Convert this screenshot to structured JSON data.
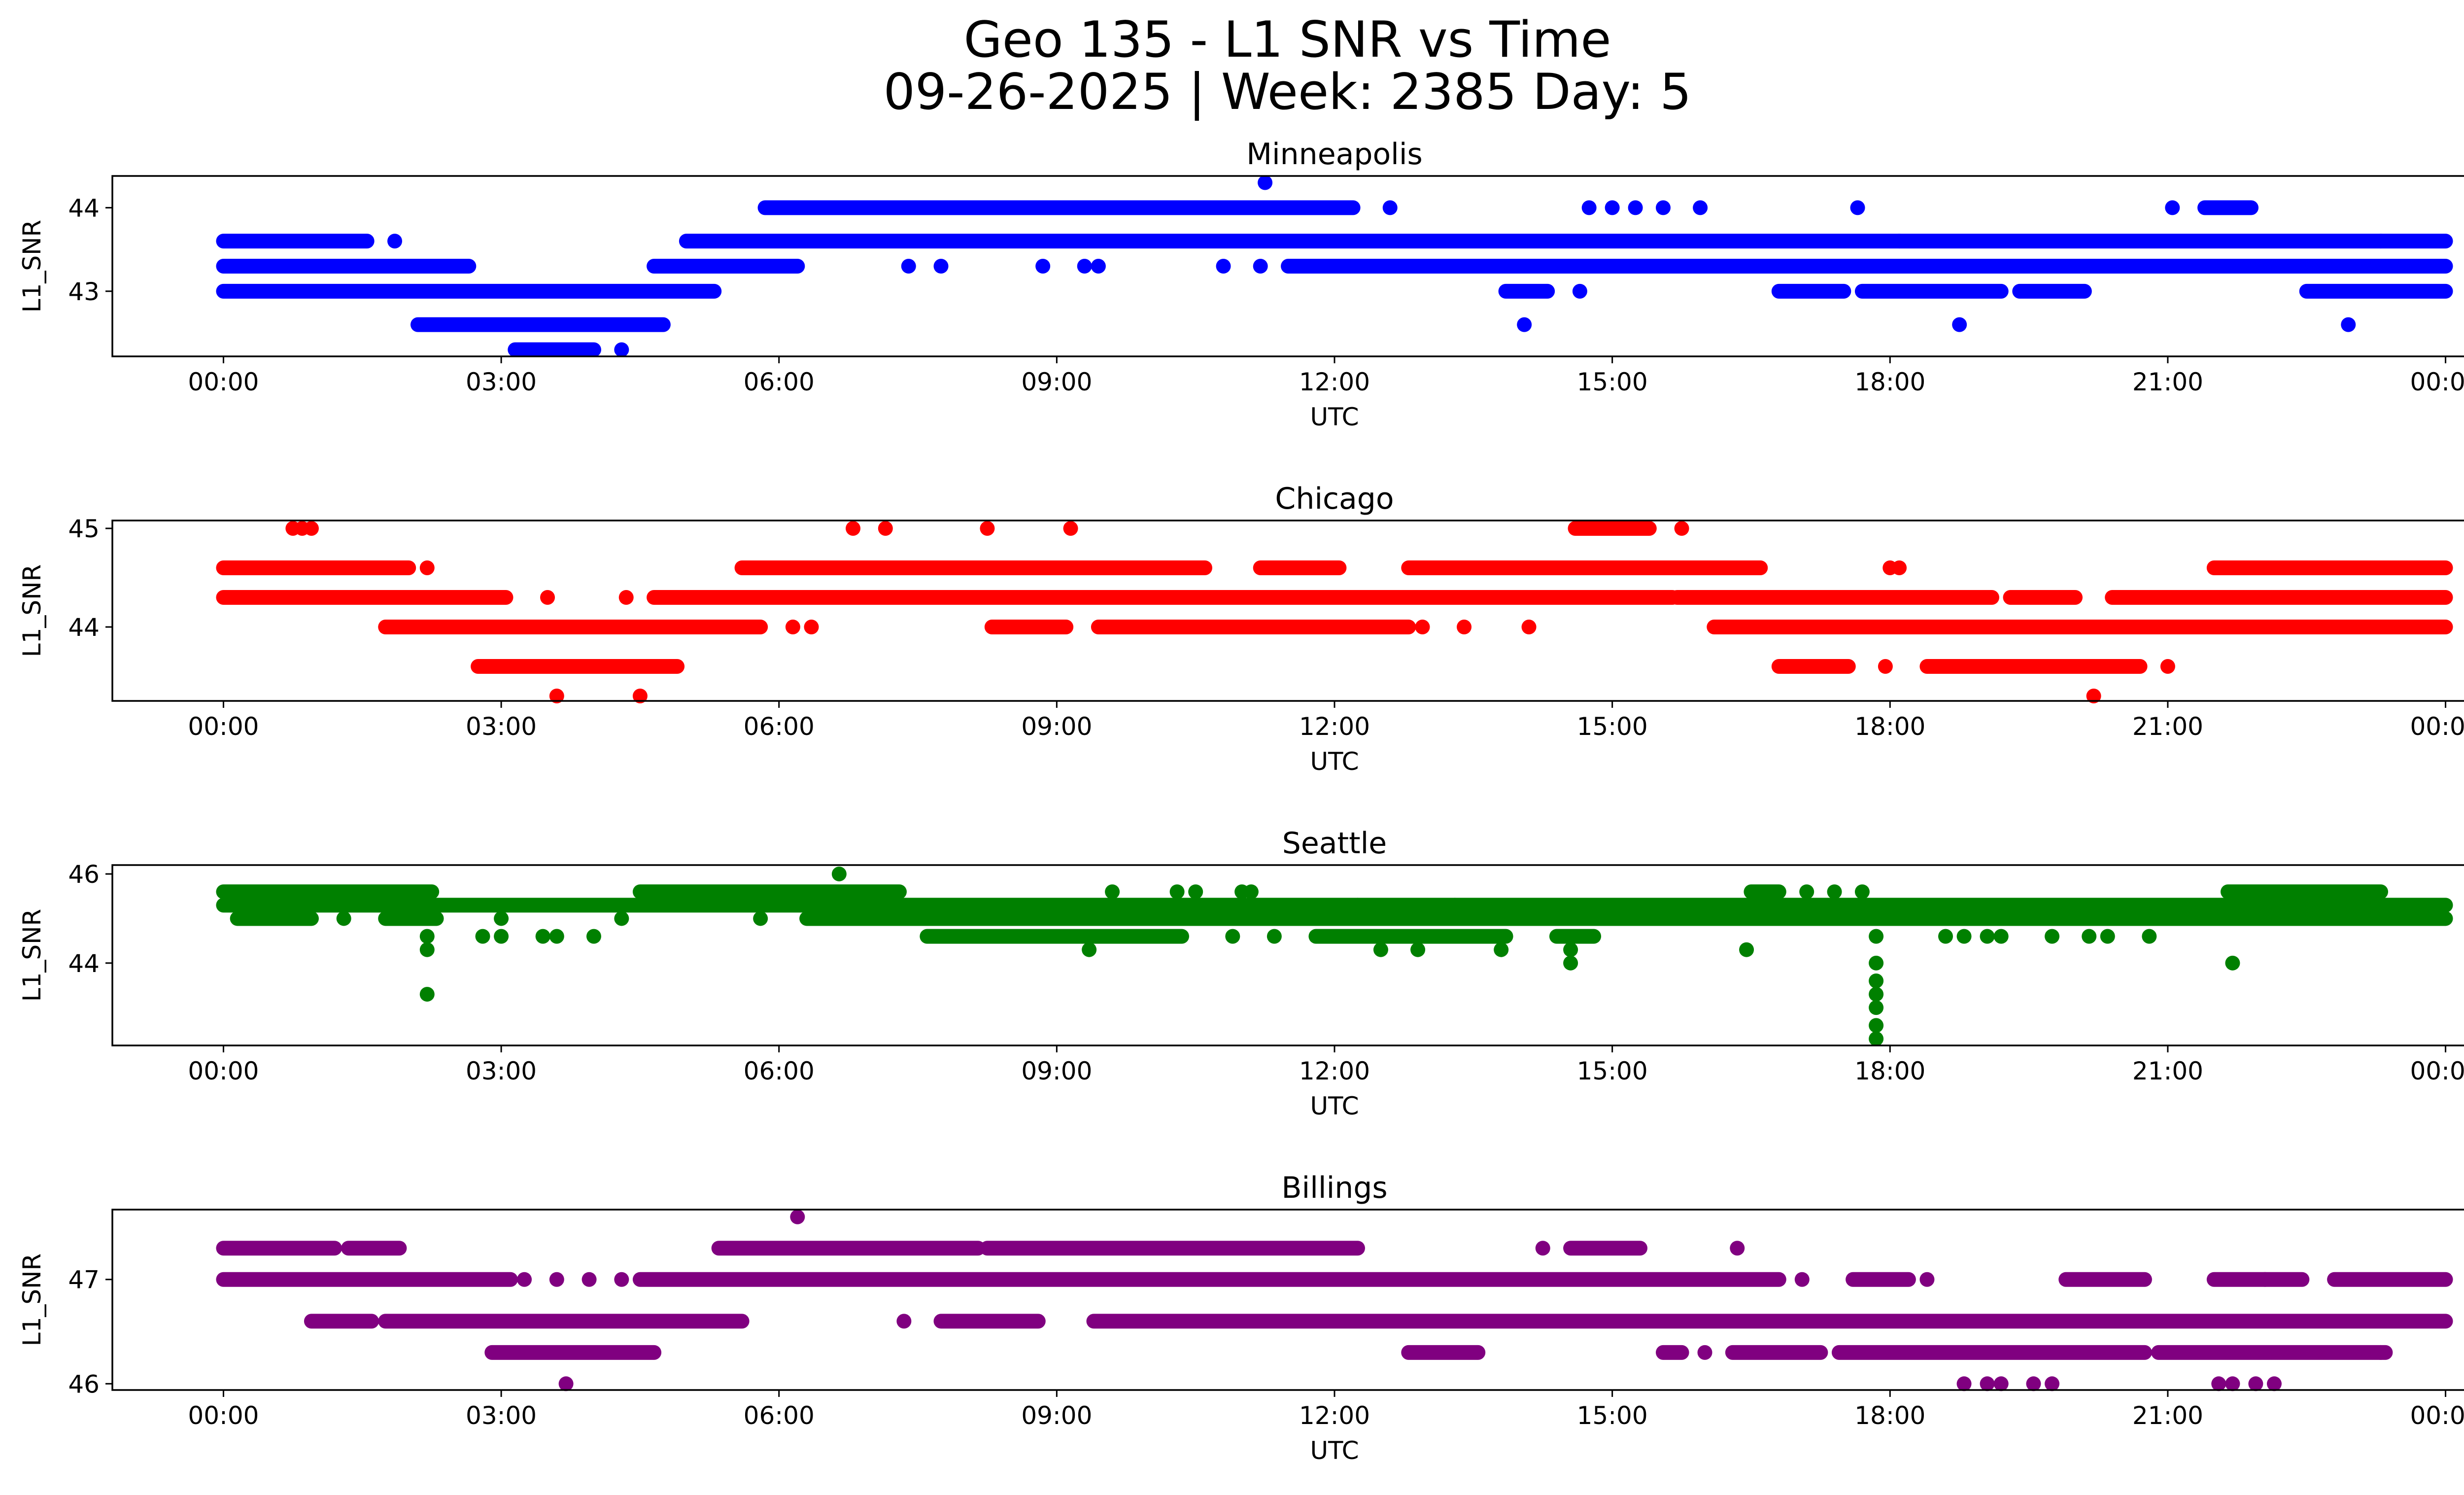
{
  "figure": {
    "title_line1": "Geo 135 - L1 SNR vs Time",
    "title_line2": "09-26-2025 | Week: 2385 Day: 5"
  },
  "chart_data": [
    {
      "type": "scatter",
      "title": "Minneapolis",
      "xlabel": "UTC",
      "ylabel": "L1_SNR",
      "color": "#0000ff",
      "xlim": [
        -1.2,
        25.2
      ],
      "ylim": [
        42.22,
        44.38
      ],
      "yticks": [
        43,
        44
      ],
      "xticks": [
        "00:00",
        "03:00",
        "06:00",
        "09:00",
        "12:00",
        "15:00",
        "18:00",
        "21:00",
        "00:00"
      ],
      "runs": [
        {
          "y": 43.0,
          "start": 0.0,
          "end": 5.3
        },
        {
          "y": 43.3,
          "start": 0.0,
          "end": 2.65
        },
        {
          "y": 43.6,
          "start": 0.0,
          "end": 1.55
        },
        {
          "y": 42.6,
          "start": 2.1,
          "end": 4.75
        },
        {
          "y": 42.3,
          "start": 3.15,
          "end": 4.0
        },
        {
          "y": 43.3,
          "start": 4.65,
          "end": 6.2
        },
        {
          "y": 43.6,
          "start": 5.0,
          "end": 24.0
        },
        {
          "y": 44.0,
          "start": 5.85,
          "end": 12.2
        },
        {
          "y": 43.3,
          "start": 11.5,
          "end": 24.0
        },
        {
          "y": 43.0,
          "start": 13.85,
          "end": 14.3
        },
        {
          "y": 43.0,
          "start": 16.8,
          "end": 17.5
        },
        {
          "y": 43.0,
          "start": 17.7,
          "end": 19.2
        },
        {
          "y": 43.0,
          "start": 19.4,
          "end": 20.1
        },
        {
          "y": 43.0,
          "start": 22.5,
          "end": 24.0
        },
        {
          "y": 44.0,
          "start": 21.4,
          "end": 21.9
        }
      ],
      "points": [
        {
          "x": 1.85,
          "y": 43.6
        },
        {
          "x": 4.3,
          "y": 42.3
        },
        {
          "x": 7.4,
          "y": 43.3
        },
        {
          "x": 7.75,
          "y": 43.3
        },
        {
          "x": 8.85,
          "y": 43.3
        },
        {
          "x": 9.3,
          "y": 43.3
        },
        {
          "x": 9.45,
          "y": 43.3
        },
        {
          "x": 10.8,
          "y": 43.3
        },
        {
          "x": 11.2,
          "y": 43.3
        },
        {
          "x": 11.25,
          "y": 44.3
        },
        {
          "x": 12.6,
          "y": 44.0
        },
        {
          "x": 14.05,
          "y": 42.6
        },
        {
          "x": 14.65,
          "y": 43.0
        },
        {
          "x": 14.75,
          "y": 44.0
        },
        {
          "x": 15.0,
          "y": 44.0
        },
        {
          "x": 15.25,
          "y": 44.0
        },
        {
          "x": 15.55,
          "y": 44.0
        },
        {
          "x": 15.95,
          "y": 44.0
        },
        {
          "x": 17.65,
          "y": 44.0
        },
        {
          "x": 18.1,
          "y": 43.6
        },
        {
          "x": 18.75,
          "y": 42.6
        },
        {
          "x": 21.05,
          "y": 44.0
        },
        {
          "x": 22.95,
          "y": 42.6
        },
        {
          "x": 23.3,
          "y": 43.6
        }
      ]
    },
    {
      "type": "scatter",
      "title": "Chicago",
      "xlabel": "UTC",
      "ylabel": "L1_SNR",
      "color": "#ff0000",
      "xlim": [
        -1.2,
        25.2
      ],
      "ylim": [
        43.25,
        45.08
      ],
      "yticks": [
        44,
        45
      ],
      "xticks": [
        "00:00",
        "03:00",
        "06:00",
        "09:00",
        "12:00",
        "15:00",
        "18:00",
        "21:00",
        "00:00"
      ],
      "runs": [
        {
          "y": 44.3,
          "start": 0.0,
          "end": 3.05
        },
        {
          "y": 44.6,
          "start": 0.0,
          "end": 2.0
        },
        {
          "y": 44.0,
          "start": 1.75,
          "end": 5.8
        },
        {
          "y": 43.6,
          "start": 2.75,
          "end": 4.9
        },
        {
          "y": 44.3,
          "start": 4.65,
          "end": 15.65
        },
        {
          "y": 44.6,
          "start": 5.6,
          "end": 10.6
        },
        {
          "y": 44.0,
          "start": 8.3,
          "end": 9.1
        },
        {
          "y": 44.0,
          "start": 9.45,
          "end": 12.8
        },
        {
          "y": 44.6,
          "start": 11.2,
          "end": 12.05
        },
        {
          "y": 44.6,
          "start": 12.8,
          "end": 16.6
        },
        {
          "y": 44.3,
          "start": 15.7,
          "end": 19.1
        },
        {
          "y": 44.0,
          "start": 16.1,
          "end": 24.0
        },
        {
          "y": 45.0,
          "start": 14.6,
          "end": 15.4
        },
        {
          "y": 43.6,
          "start": 16.8,
          "end": 17.55
        },
        {
          "y": 43.6,
          "start": 18.4,
          "end": 20.7
        },
        {
          "y": 44.3,
          "start": 19.3,
          "end": 20.0
        },
        {
          "y": 44.3,
          "start": 20.4,
          "end": 24.0
        },
        {
          "y": 44.6,
          "start": 21.5,
          "end": 24.0
        }
      ],
      "points": [
        {
          "x": 0.75,
          "y": 45.0
        },
        {
          "x": 0.85,
          "y": 45.0
        },
        {
          "x": 0.95,
          "y": 45.0
        },
        {
          "x": 2.2,
          "y": 44.6
        },
        {
          "x": 3.5,
          "y": 44.3
        },
        {
          "x": 3.6,
          "y": 43.3
        },
        {
          "x": 4.35,
          "y": 44.3
        },
        {
          "x": 4.5,
          "y": 43.3
        },
        {
          "x": 6.15,
          "y": 44.0
        },
        {
          "x": 6.35,
          "y": 44.0
        },
        {
          "x": 6.8,
          "y": 45.0
        },
        {
          "x": 7.15,
          "y": 45.0
        },
        {
          "x": 8.25,
          "y": 45.0
        },
        {
          "x": 9.15,
          "y": 45.0
        },
        {
          "x": 12.95,
          "y": 44.0
        },
        {
          "x": 13.4,
          "y": 44.0
        },
        {
          "x": 14.1,
          "y": 44.0
        },
        {
          "x": 15.75,
          "y": 45.0
        },
        {
          "x": 18.0,
          "y": 44.6
        },
        {
          "x": 18.1,
          "y": 44.6
        },
        {
          "x": 18.65,
          "y": 44.3
        },
        {
          "x": 17.95,
          "y": 43.6
        },
        {
          "x": 20.2,
          "y": 43.3
        },
        {
          "x": 21.0,
          "y": 43.6
        }
      ]
    },
    {
      "type": "scatter",
      "title": "Seattle",
      "xlabel": "UTC",
      "ylabel": "L1_SNR",
      "color": "#008000",
      "xlim": [
        -1.2,
        25.2
      ],
      "ylim": [
        42.15,
        46.2
      ],
      "yticks": [
        44,
        46
      ],
      "xticks": [
        "00:00",
        "03:00",
        "06:00",
        "09:00",
        "12:00",
        "15:00",
        "18:00",
        "21:00",
        "00:00"
      ],
      "runs": [
        {
          "y": 45.6,
          "start": 0.0,
          "end": 2.25
        },
        {
          "y": 45.3,
          "start": 0.0,
          "end": 24.0
        },
        {
          "y": 45.0,
          "start": 0.15,
          "end": 0.95
        },
        {
          "y": 45.0,
          "start": 1.75,
          "end": 2.3
        },
        {
          "y": 45.0,
          "start": 6.3,
          "end": 24.0
        },
        {
          "y": 45.6,
          "start": 4.5,
          "end": 7.3
        },
        {
          "y": 44.6,
          "start": 7.6,
          "end": 10.35
        },
        {
          "y": 44.6,
          "start": 11.8,
          "end": 13.85
        },
        {
          "y": 44.6,
          "start": 14.4,
          "end": 14.8
        },
        {
          "y": 45.6,
          "start": 16.5,
          "end": 16.8
        },
        {
          "y": 45.6,
          "start": 21.65,
          "end": 23.3
        }
      ],
      "points": [
        {
          "x": 1.3,
          "y": 45.0
        },
        {
          "x": 2.2,
          "y": 44.6
        },
        {
          "x": 2.2,
          "y": 44.3
        },
        {
          "x": 2.2,
          "y": 43.3
        },
        {
          "x": 2.8,
          "y": 44.6
        },
        {
          "x": 3.0,
          "y": 44.6
        },
        {
          "x": 3.45,
          "y": 44.6
        },
        {
          "x": 3.6,
          "y": 44.6
        },
        {
          "x": 4.0,
          "y": 44.6
        },
        {
          "x": 3.0,
          "y": 45.0
        },
        {
          "x": 4.3,
          "y": 45.0
        },
        {
          "x": 5.8,
          "y": 45.0
        },
        {
          "x": 6.65,
          "y": 46.0
        },
        {
          "x": 9.35,
          "y": 44.3
        },
        {
          "x": 9.6,
          "y": 45.6
        },
        {
          "x": 10.3,
          "y": 45.6
        },
        {
          "x": 10.5,
          "y": 45.6
        },
        {
          "x": 11.0,
          "y": 45.6
        },
        {
          "x": 11.1,
          "y": 45.6
        },
        {
          "x": 10.9,
          "y": 44.6
        },
        {
          "x": 11.35,
          "y": 44.6
        },
        {
          "x": 12.25,
          "y": 45.3
        },
        {
          "x": 12.5,
          "y": 44.3
        },
        {
          "x": 12.9,
          "y": 44.3
        },
        {
          "x": 13.3,
          "y": 45.3
        },
        {
          "x": 13.8,
          "y": 44.3
        },
        {
          "x": 14.55,
          "y": 44.3
        },
        {
          "x": 14.55,
          "y": 44.0
        },
        {
          "x": 16.45,
          "y": 44.3
        },
        {
          "x": 17.1,
          "y": 45.6
        },
        {
          "x": 17.4,
          "y": 45.6
        },
        {
          "x": 17.7,
          "y": 45.6
        },
        {
          "x": 17.85,
          "y": 44.6
        },
        {
          "x": 17.85,
          "y": 44.0
        },
        {
          "x": 17.85,
          "y": 43.6
        },
        {
          "x": 17.85,
          "y": 43.3
        },
        {
          "x": 17.85,
          "y": 43.0
        },
        {
          "x": 17.85,
          "y": 42.6
        },
        {
          "x": 17.85,
          "y": 42.3
        },
        {
          "x": 18.6,
          "y": 44.6
        },
        {
          "x": 18.8,
          "y": 44.6
        },
        {
          "x": 19.05,
          "y": 44.6
        },
        {
          "x": 19.2,
          "y": 44.6
        },
        {
          "x": 19.75,
          "y": 44.6
        },
        {
          "x": 20.15,
          "y": 44.6
        },
        {
          "x": 20.35,
          "y": 44.6
        },
        {
          "x": 20.8,
          "y": 44.6
        },
        {
          "x": 21.7,
          "y": 44.0
        }
      ]
    },
    {
      "type": "scatter",
      "title": "Billings",
      "xlabel": "UTC",
      "ylabel": "L1_SNR",
      "color": "#800080",
      "xlim": [
        -1.2,
        25.2
      ],
      "ylim": [
        45.94,
        47.67
      ],
      "yticks": [
        46,
        47
      ],
      "xticks": [
        "00:00",
        "03:00",
        "06:00",
        "09:00",
        "12:00",
        "15:00",
        "18:00",
        "21:00",
        "00:00"
      ],
      "runs": [
        {
          "y": 47.3,
          "start": 0.0,
          "end": 1.2
        },
        {
          "y": 47.0,
          "start": 0.0,
          "end": 3.1
        },
        {
          "y": 47.3,
          "start": 1.35,
          "end": 1.9
        },
        {
          "y": 46.6,
          "start": 0.95,
          "end": 1.6
        },
        {
          "y": 46.6,
          "start": 1.75,
          "end": 5.6
        },
        {
          "y": 46.3,
          "start": 2.9,
          "end": 4.65
        },
        {
          "y": 47.0,
          "start": 4.5,
          "end": 16.8
        },
        {
          "y": 47.3,
          "start": 5.35,
          "end": 8.15
        },
        {
          "y": 47.3,
          "start": 8.25,
          "end": 12.25
        },
        {
          "y": 46.6,
          "start": 7.75,
          "end": 8.8
        },
        {
          "y": 46.6,
          "start": 9.4,
          "end": 24.0
        },
        {
          "y": 46.3,
          "start": 12.8,
          "end": 13.55
        },
        {
          "y": 47.3,
          "start": 14.55,
          "end": 15.3
        },
        {
          "y": 46.3,
          "start": 15.55,
          "end": 15.75
        },
        {
          "y": 46.3,
          "start": 16.3,
          "end": 17.25
        },
        {
          "y": 47.0,
          "start": 17.6,
          "end": 18.2
        },
        {
          "y": 46.3,
          "start": 17.45,
          "end": 20.75
        },
        {
          "y": 46.3,
          "start": 20.9,
          "end": 23.35
        },
        {
          "y": 47.0,
          "start": 19.9,
          "end": 20.75
        },
        {
          "y": 47.0,
          "start": 22.8,
          "end": 24.0
        },
        {
          "y": 47.0,
          "start": 21.5,
          "end": 22.45
        }
      ],
      "points": [
        {
          "x": 3.25,
          "y": 47.0
        },
        {
          "x": 3.6,
          "y": 47.0
        },
        {
          "x": 3.95,
          "y": 47.0
        },
        {
          "x": 3.7,
          "y": 46.0
        },
        {
          "x": 4.3,
          "y": 47.0
        },
        {
          "x": 6.2,
          "y": 47.6
        },
        {
          "x": 7.35,
          "y": 46.6
        },
        {
          "x": 14.25,
          "y": 47.3
        },
        {
          "x": 16.35,
          "y": 47.3
        },
        {
          "x": 16.0,
          "y": 46.3
        },
        {
          "x": 17.05,
          "y": 47.0
        },
        {
          "x": 18.4,
          "y": 47.0
        },
        {
          "x": 18.8,
          "y": 46.0
        },
        {
          "x": 19.05,
          "y": 46.0
        },
        {
          "x": 19.2,
          "y": 46.0
        },
        {
          "x": 19.55,
          "y": 46.0
        },
        {
          "x": 19.75,
          "y": 46.0
        },
        {
          "x": 21.55,
          "y": 46.0
        },
        {
          "x": 21.7,
          "y": 46.0
        },
        {
          "x": 21.95,
          "y": 46.0
        },
        {
          "x": 22.15,
          "y": 46.0
        },
        {
          "x": 22.05,
          "y": 47.0
        },
        {
          "x": 23.3,
          "y": 46.3
        }
      ]
    }
  ]
}
